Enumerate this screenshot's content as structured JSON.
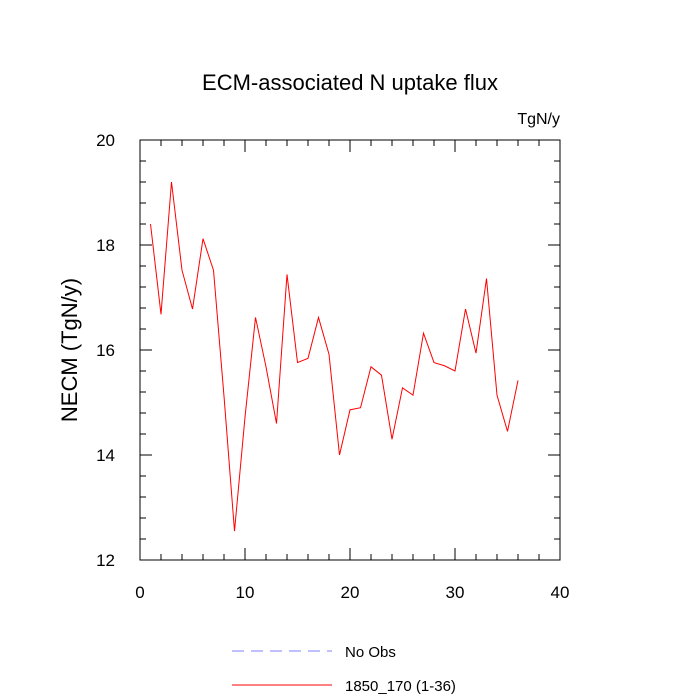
{
  "chart_data": {
    "type": "line",
    "title": "ECM-associated N uptake flux",
    "units_label": "TgN/y",
    "xlabel": "",
    "ylabel": "NECM  (TgN/y)",
    "xlim": [
      0,
      40
    ],
    "ylim": [
      12,
      20
    ],
    "x_ticks": [
      0,
      10,
      20,
      30,
      40
    ],
    "y_ticks": [
      12,
      14,
      16,
      18,
      20
    ],
    "x_tick_labels": [
      "0",
      "10",
      "20",
      "30",
      "40"
    ],
    "y_tick_labels": [
      "12",
      "14",
      "16",
      "18",
      "20"
    ],
    "grid": false,
    "legend_position": "bottom",
    "legend": [
      {
        "name": "No Obs",
        "color": "#8080ff",
        "style": "dashed"
      },
      {
        "name": "1850_170 (1-36)",
        "color": "#ff0000",
        "style": "solid"
      }
    ],
    "series": [
      {
        "name": "1850_170 (1-36)",
        "color": "#ff0000",
        "x": [
          1,
          2,
          3,
          4,
          5,
          6,
          7,
          8,
          9,
          10,
          11,
          12,
          13,
          14,
          15,
          16,
          17,
          18,
          19,
          20,
          21,
          22,
          23,
          24,
          25,
          26,
          27,
          28,
          29,
          30,
          31,
          32,
          33,
          34,
          35,
          36
        ],
        "values": [
          18.4,
          16.68,
          19.2,
          17.52,
          16.78,
          18.12,
          17.52,
          15.12,
          12.55,
          14.72,
          16.62,
          15.68,
          14.6,
          17.44,
          15.76,
          15.84,
          16.62,
          15.92,
          14.0,
          14.86,
          14.9,
          15.68,
          15.52,
          14.3,
          15.28,
          15.14,
          16.32,
          15.76,
          15.7,
          15.6,
          16.78,
          15.94,
          17.36,
          15.14,
          14.45,
          15.42
        ]
      },
      {
        "name": "No Obs",
        "color": "#8080ff",
        "x": [],
        "values": []
      }
    ]
  }
}
